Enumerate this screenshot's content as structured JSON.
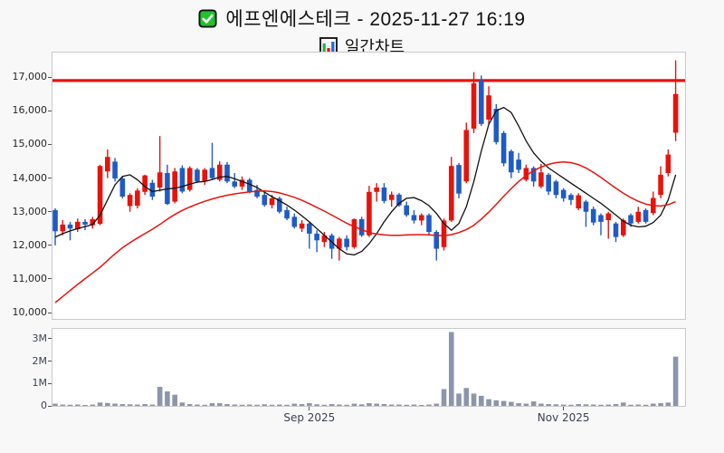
{
  "header": {
    "title": "에프엔에스테크 - 2025-11-27 16:19",
    "subtitle": "일간차트",
    "title_icon": "checkbox-checked",
    "subtitle_icon": "bar-chart"
  },
  "chart_data": {
    "type": "candlestick",
    "panels": [
      "price",
      "volume"
    ],
    "title": "에프엔에스테크 daily chart",
    "x_axis": {
      "unit": "trading-day-index",
      "count": 84,
      "ticks": [
        {
          "i": 34,
          "label": "Sep 2025"
        },
        {
          "i": 68,
          "label": "Nov 2025"
        }
      ]
    },
    "price_axis": {
      "lim": [
        9815,
        17732
      ],
      "tick_values": [
        10000,
        11000,
        12000,
        13000,
        14000,
        15000,
        16000,
        17000
      ],
      "tick_labels": [
        "10,000",
        "11,000",
        "12,000",
        "13,000",
        "14,000",
        "15,000",
        "16,000",
        "17,000"
      ]
    },
    "volume_axis": {
      "lim_millions": [
        0,
        3.44
      ],
      "ticks": [
        {
          "v": 0,
          "label": "0"
        },
        {
          "v": 1,
          "label": "1M"
        },
        {
          "v": 2,
          "label": "2M"
        },
        {
          "v": 3,
          "label": "3M"
        }
      ]
    },
    "hline": {
      "value": 16900
    },
    "candles": {
      "open": [
        13050,
        12420,
        12620,
        12480,
        12700,
        12600,
        12640,
        14200,
        14490,
        13990,
        13170,
        13180,
        13590,
        13860,
        13720,
        14150,
        13300,
        14300,
        13650,
        14250,
        13900,
        14300,
        13950,
        14400,
        13900,
        13750,
        13950,
        13650,
        13500,
        13200,
        13400,
        13050,
        12850,
        12500,
        12650,
        12350,
        12100,
        12300,
        11900,
        12200,
        11950,
        12780,
        12300,
        13590,
        13720,
        13350,
        13510,
        13190,
        12900,
        12740,
        12900,
        12400,
        11950,
        12740,
        14390,
        13900,
        15470,
        16910,
        15740,
        16060,
        15340,
        14800,
        14550,
        13950,
        14300,
        13750,
        14100,
        13900,
        13650,
        13500,
        13100,
        13300,
        13080,
        12900,
        12750,
        12650,
        12300,
        12900,
        12700,
        13050,
        12960,
        13500,
        14150,
        15350
      ],
      "high": [
        13100,
        12750,
        12700,
        12800,
        12780,
        12850,
        14400,
        14850,
        14600,
        14050,
        13550,
        13700,
        14100,
        13950,
        15250,
        14400,
        14300,
        14380,
        14350,
        14300,
        14300,
        15050,
        14500,
        14480,
        14150,
        14050,
        14000,
        13800,
        13600,
        13500,
        13450,
        13150,
        12950,
        12750,
        12700,
        12450,
        12400,
        12350,
        12250,
        12300,
        12800,
        12850,
        13770,
        13850,
        13850,
        13600,
        13560,
        13300,
        13050,
        12950,
        12950,
        12450,
        12800,
        14630,
        14450,
        15650,
        17150,
        17050,
        16730,
        16200,
        15400,
        14850,
        14750,
        14400,
        14350,
        14420,
        14150,
        13950,
        13700,
        13550,
        13550,
        13350,
        13150,
        12950,
        13000,
        12700,
        12800,
        12950,
        13150,
        13100,
        13600,
        14350,
        14850,
        17500
      ],
      "low": [
        12000,
        12300,
        12150,
        12400,
        12450,
        12500,
        12600,
        14000,
        13900,
        13400,
        13000,
        13100,
        13500,
        13350,
        13600,
        13200,
        13250,
        13550,
        13600,
        13850,
        13800,
        13950,
        13900,
        13850,
        13700,
        13650,
        13550,
        13400,
        13150,
        13100,
        12950,
        12750,
        12500,
        12400,
        11900,
        11800,
        11950,
        11600,
        11550,
        11850,
        11900,
        12250,
        12250,
        13300,
        13250,
        13150,
        13150,
        12850,
        12650,
        12600,
        12300,
        11550,
        11850,
        12700,
        13400,
        13850,
        15340,
        15550,
        15600,
        15000,
        14350,
        14000,
        14150,
        13900,
        13750,
        13700,
        13500,
        13400,
        13300,
        13200,
        13050,
        12550,
        12600,
        12300,
        12200,
        12100,
        12250,
        12550,
        12650,
        12650,
        12900,
        13400,
        14050,
        15100
      ],
      "close": [
        12420,
        12620,
        12500,
        12700,
        12620,
        12780,
        14360,
        14630,
        13990,
        13450,
        13500,
        13630,
        14080,
        13450,
        14170,
        13230,
        14200,
        13600,
        14300,
        13900,
        14250,
        14000,
        14400,
        13900,
        13750,
        13950,
        13600,
        13450,
        13200,
        13400,
        13000,
        12800,
        12550,
        12650,
        12350,
        12150,
        12300,
        11900,
        12200,
        11950,
        12780,
        12300,
        13590,
        13720,
        13320,
        13510,
        13190,
        12900,
        12740,
        12900,
        12400,
        11900,
        12740,
        14360,
        13540,
        15430,
        16820,
        15610,
        16460,
        15070,
        14440,
        14170,
        14250,
        14300,
        13900,
        14170,
        13600,
        13500,
        13400,
        13350,
        13490,
        13000,
        12680,
        12700,
        12950,
        12250,
        12750,
        12650,
        13000,
        12700,
        13410,
        14100,
        14700,
        16500
      ]
    },
    "volume_millions": [
      0.1,
      0.06,
      0.05,
      0.06,
      0.04,
      0.06,
      0.15,
      0.13,
      0.1,
      0.08,
      0.07,
      0.06,
      0.08,
      0.06,
      0.85,
      0.65,
      0.5,
      0.15,
      0.08,
      0.06,
      0.05,
      0.12,
      0.12,
      0.08,
      0.06,
      0.05,
      0.06,
      0.05,
      0.07,
      0.05,
      0.06,
      0.05,
      0.1,
      0.08,
      0.12,
      0.07,
      0.05,
      0.08,
      0.06,
      0.05,
      0.1,
      0.07,
      0.12,
      0.1,
      0.08,
      0.06,
      0.06,
      0.05,
      0.06,
      0.04,
      0.06,
      0.1,
      0.75,
      3.3,
      0.55,
      0.8,
      0.55,
      0.45,
      0.3,
      0.25,
      0.22,
      0.18,
      0.12,
      0.1,
      0.2,
      0.1,
      0.08,
      0.07,
      0.06,
      0.05,
      0.08,
      0.07,
      0.06,
      0.05,
      0.06,
      0.08,
      0.15,
      0.05,
      0.06,
      0.05,
      0.1,
      0.12,
      0.15,
      2.2
    ],
    "moving_averages": {
      "short_black": [
        12250,
        12350,
        12430,
        12500,
        12560,
        12620,
        12900,
        13350,
        13800,
        14050,
        14100,
        13950,
        13750,
        13600,
        13640,
        13680,
        13700,
        13750,
        13820,
        13880,
        13900,
        13960,
        14030,
        14050,
        13980,
        13900,
        13820,
        13720,
        13580,
        13450,
        13330,
        13200,
        13050,
        12880,
        12700,
        12500,
        12300,
        12100,
        11900,
        11750,
        11720,
        11820,
        12050,
        12350,
        12700,
        13000,
        13250,
        13400,
        13420,
        13330,
        13180,
        12950,
        12650,
        12450,
        12650,
        13150,
        13900,
        14800,
        15600,
        16000,
        16100,
        15950,
        15550,
        15100,
        14750,
        14500,
        14300,
        14150,
        14000,
        13850,
        13700,
        13550,
        13400,
        13250,
        13080,
        12900,
        12720,
        12600,
        12550,
        12570,
        12680,
        12900,
        13350,
        14100
      ],
      "long_red": [
        10300,
        10480,
        10660,
        10840,
        11010,
        11180,
        11350,
        11550,
        11750,
        11930,
        12080,
        12220,
        12350,
        12480,
        12620,
        12780,
        12920,
        13040,
        13140,
        13230,
        13310,
        13380,
        13440,
        13490,
        13530,
        13560,
        13590,
        13610,
        13620,
        13600,
        13560,
        13500,
        13430,
        13340,
        13240,
        13130,
        13020,
        12900,
        12780,
        12660,
        12560,
        12470,
        12380,
        12340,
        12310,
        12300,
        12300,
        12310,
        12320,
        12320,
        12310,
        12300,
        12290,
        12320,
        12380,
        12470,
        12600,
        12780,
        12990,
        13220,
        13460,
        13690,
        13900,
        14080,
        14220,
        14330,
        14410,
        14460,
        14480,
        14460,
        14400,
        14300,
        14170,
        14020,
        13860,
        13700,
        13550,
        13420,
        13310,
        13230,
        13180,
        13170,
        13210,
        13300
      ]
    },
    "legend": null,
    "grid": false,
    "colors": {
      "up": "#e8120b",
      "down": "#1e5bc6",
      "volume_bar": "#8d95ac",
      "ma_short": "#111111",
      "ma_long": "#e8120b",
      "hline": "#e8120b",
      "axis_label": "#262626",
      "secondary_label": "#3d4254",
      "panel_border": "#c9c9c9",
      "icon_green": "#1fc32b",
      "icon_bar_green": "#22b14c",
      "icon_bar_red": "#e8120b",
      "icon_bar_blue": "#1e66e0"
    }
  }
}
